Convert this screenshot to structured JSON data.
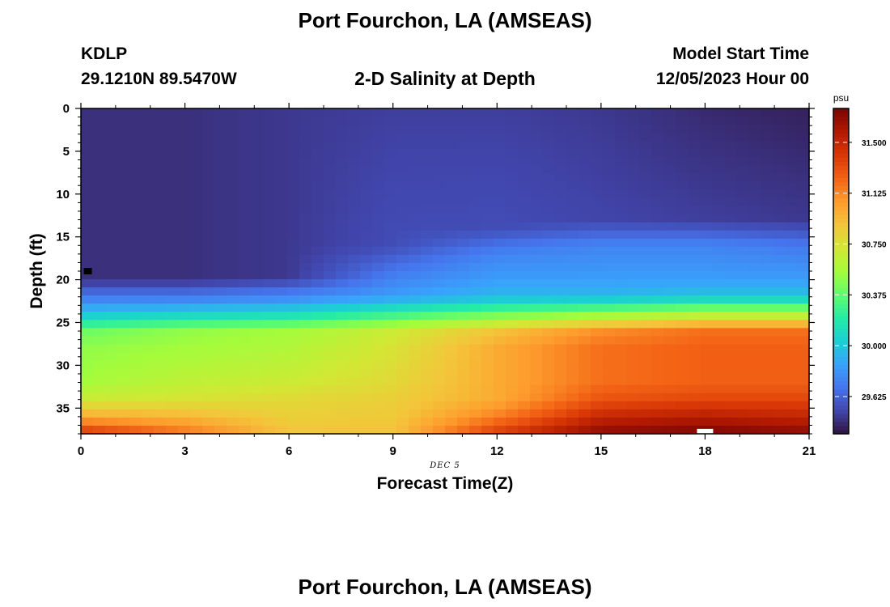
{
  "header": {
    "title": "Port Fourchon, LA (AMSEAS)",
    "station_id": "KDLP",
    "coordinates": "29.1210N  89.5470W",
    "subtitle": "2-D Salinity at Depth",
    "model_start_label": "Model Start Time",
    "model_start_value": "12/05/2023 Hour 00",
    "repeated_title": "Port Fourchon, LA (AMSEAS)"
  },
  "chart_data": {
    "type": "heatmap",
    "xlabel": "Forecast Time(Z)",
    "ylabel": "Depth (ft)",
    "date_label": "DEC 5",
    "x_range": [
      0,
      21
    ],
    "y_range": [
      0,
      38
    ],
    "y_inverted": true,
    "x_ticks": [
      0,
      3,
      6,
      9,
      12,
      15,
      18,
      21
    ],
    "y_ticks": [
      0,
      5,
      10,
      15,
      20,
      25,
      30,
      35
    ],
    "x_tick_labels": [
      "0",
      "3",
      "6",
      "9",
      "12",
      "15",
      "18",
      "21"
    ],
    "y_tick_labels": [
      "0",
      "5",
      "10",
      "15",
      "20",
      "25",
      "30",
      "35"
    ],
    "colorbar": {
      "unit": "psu",
      "min": 29.35,
      "max": 31.75,
      "ticks": [
        29.625,
        30.0,
        30.375,
        30.75,
        31.125,
        31.5
      ],
      "tick_labels": [
        "29.625",
        "30.000",
        "30.375",
        "30.750",
        "31.125",
        "31.500"
      ]
    },
    "grid": false,
    "legend": "right",
    "salinity_profiles": [
      {
        "time": 0,
        "profile": [
          [
            0,
            29.45
          ],
          [
            20.3,
            29.45
          ],
          [
            20.5,
            29.55
          ],
          [
            22,
            29.7
          ],
          [
            24,
            30.0
          ],
          [
            26,
            30.4
          ],
          [
            28,
            30.5
          ],
          [
            32,
            30.55
          ],
          [
            34,
            30.7
          ],
          [
            36,
            31.0
          ],
          [
            38,
            31.45
          ]
        ]
      },
      {
        "time": 3,
        "profile": [
          [
            0,
            29.45
          ],
          [
            20.3,
            29.45
          ],
          [
            20.5,
            29.55
          ],
          [
            22,
            29.7
          ],
          [
            24,
            30.05
          ],
          [
            26,
            30.5
          ],
          [
            28,
            30.55
          ],
          [
            32,
            30.65
          ],
          [
            34,
            30.75
          ],
          [
            36,
            30.95
          ],
          [
            38,
            31.2
          ]
        ]
      },
      {
        "time": 6,
        "profile": [
          [
            0,
            29.48
          ],
          [
            20.2,
            29.48
          ],
          [
            20.5,
            29.6
          ],
          [
            22,
            29.75
          ],
          [
            24,
            30.1
          ],
          [
            26,
            30.55
          ],
          [
            28,
            30.6
          ],
          [
            32,
            30.7
          ],
          [
            34,
            30.8
          ],
          [
            36,
            30.85
          ],
          [
            38,
            30.9
          ]
        ]
      },
      {
        "time": 9,
        "profile": [
          [
            0,
            29.5
          ],
          [
            16,
            29.55
          ],
          [
            18,
            29.65
          ],
          [
            20,
            29.75
          ],
          [
            22,
            29.85
          ],
          [
            24,
            30.25
          ],
          [
            26,
            30.7
          ],
          [
            28,
            30.75
          ],
          [
            32,
            30.8
          ],
          [
            34,
            30.85
          ],
          [
            38,
            30.9
          ]
        ]
      },
      {
        "time": 12,
        "profile": [
          [
            0,
            29.5
          ],
          [
            14,
            29.55
          ],
          [
            17,
            29.75
          ],
          [
            20,
            29.85
          ],
          [
            22,
            29.95
          ],
          [
            24,
            30.4
          ],
          [
            26,
            30.9
          ],
          [
            28,
            31.0
          ],
          [
            32,
            31.0
          ],
          [
            34,
            31.0
          ],
          [
            36,
            31.15
          ],
          [
            38,
            31.4
          ]
        ]
      },
      {
        "time": 15,
        "profile": [
          [
            0,
            29.48
          ],
          [
            13,
            29.52
          ],
          [
            16,
            29.75
          ],
          [
            20,
            29.85
          ],
          [
            22,
            29.95
          ],
          [
            24,
            30.5
          ],
          [
            26,
            31.1
          ],
          [
            28,
            31.2
          ],
          [
            32,
            31.2
          ],
          [
            34,
            31.3
          ],
          [
            36,
            31.5
          ],
          [
            38,
            31.7
          ]
        ]
      },
      {
        "time": 18,
        "profile": [
          [
            0,
            29.43
          ],
          [
            13,
            29.5
          ],
          [
            16,
            29.75
          ],
          [
            20,
            29.85
          ],
          [
            22,
            30.0
          ],
          [
            24,
            30.6
          ],
          [
            26,
            31.2
          ],
          [
            28,
            31.25
          ],
          [
            32,
            31.25
          ],
          [
            34,
            31.35
          ],
          [
            36,
            31.55
          ],
          [
            38,
            31.75
          ]
        ]
      },
      {
        "time": 21,
        "profile": [
          [
            0,
            29.4
          ],
          [
            13,
            29.48
          ],
          [
            16,
            29.7
          ],
          [
            20,
            29.85
          ],
          [
            22,
            30.0
          ],
          [
            24,
            30.6
          ],
          [
            26,
            31.2
          ],
          [
            28,
            31.25
          ],
          [
            32,
            31.25
          ],
          [
            34,
            31.35
          ],
          [
            36,
            31.5
          ],
          [
            38,
            31.7
          ]
        ]
      }
    ],
    "markers": [
      {
        "time": 0.2,
        "depth": 19,
        "color": "#000000"
      },
      {
        "time": 18.0,
        "depth": 37.8,
        "color": "#ffffff"
      }
    ]
  },
  "colors": {
    "colormap": [
      "#30123b",
      "#4145ab",
      "#4675ed",
      "#39a2fc",
      "#1bcfd4",
      "#24eca6",
      "#61fc6c",
      "#a4fc3b",
      "#d1e834",
      "#f3c63a",
      "#fe9b2d",
      "#f36315",
      "#d93806",
      "#b11901",
      "#7a0402"
    ]
  }
}
